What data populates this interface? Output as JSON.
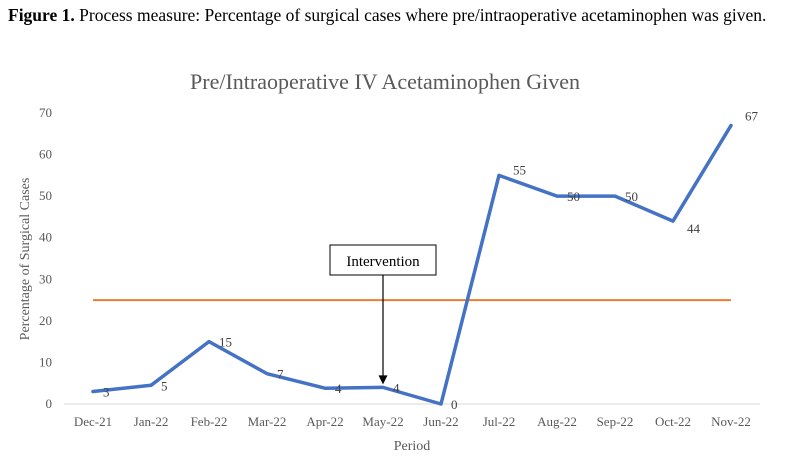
{
  "figure": {
    "label": "Figure 1.",
    "caption": "Process measure: Percentage of surgical cases where pre/intraoperative acetaminophen was given."
  },
  "chart_data": {
    "type": "line",
    "title": "Pre/Intraoperative IV Acetaminophen Given",
    "xlabel": "Period",
    "ylabel": "Percentage of Surgical Cases",
    "categories": [
      "Dec-21",
      "Jan-22",
      "Feb-22",
      "Mar-22",
      "Apr-22",
      "May-22",
      "Jun-22",
      "Jul-22",
      "Aug-22",
      "Sep-22",
      "Oct-22",
      "Nov-22"
    ],
    "series": [
      {
        "values": [
          3,
          4.5,
          15,
          7.3,
          3.8,
          4,
          0,
          55,
          50,
          50,
          44,
          67
        ],
        "color": "#4472C4"
      }
    ],
    "data_labels": [
      "3",
      "5",
      "15",
      "7",
      "4",
      "4",
      "0",
      "55",
      "50",
      "50",
      "44",
      "67"
    ],
    "reference_line": {
      "value": 25,
      "color": "#ED7D31"
    },
    "ylim": [
      0,
      70
    ],
    "yticks": [
      0,
      10,
      20,
      30,
      40,
      50,
      60,
      70
    ],
    "grid": false,
    "legend": "none",
    "annotation": {
      "text": "Intervention",
      "category": "May-22"
    }
  }
}
